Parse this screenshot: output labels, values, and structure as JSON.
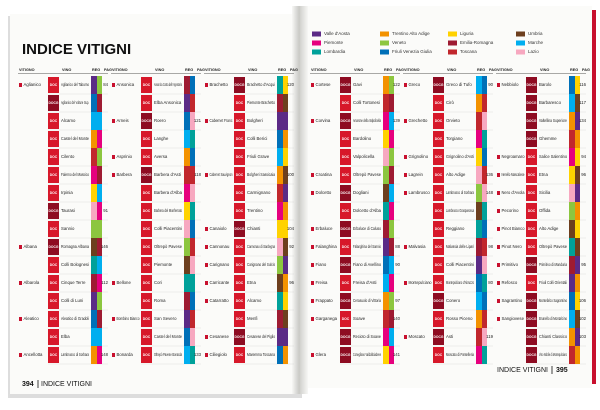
{
  "left_page": {
    "title": "INDICE VITIGNI",
    "headers": [
      "VITIGNO",
      "VINO",
      "REG",
      "PAG"
    ],
    "columns": [
      {
        "rows": [
          [
            "Aglianico",
            "DOC",
            "Aglianico del Taburno",
            84
          ],
          [
            null,
            "DOCG",
            "Aglianico del Vulture Sup.",
            null
          ],
          [
            null,
            "DOC",
            "Alcamo",
            null
          ],
          [
            null,
            "DOC",
            "Castel del Monte",
            null
          ],
          [
            null,
            "DOC",
            "Cilento",
            null
          ],
          [
            null,
            "DOC",
            "Falerno del Massico",
            null
          ],
          [
            null,
            "DOC",
            "Irpinia",
            null
          ],
          [
            null,
            "DOCG",
            "Taurasi",
            91
          ],
          [
            null,
            "DOC",
            "Sannio",
            null
          ],
          [
            "Albana",
            "DOCG",
            "Romagna Albana",
            146
          ],
          [
            null,
            "DOC",
            "Colli Bolognesi",
            null
          ],
          [
            "Albarola",
            "DOC",
            "Cinque Terre",
            112
          ],
          [
            null,
            "DOC",
            "Colli di Luni",
            null
          ],
          [
            "Aleatico",
            "DOC",
            "Aleatico di Gradoli",
            null
          ],
          [
            null,
            "DOC",
            "Elba",
            null
          ],
          [
            "Ancellotta",
            "DOC",
            "Lambrusco di Sorbara",
            148
          ]
        ]
      },
      {
        "rows": [
          [
            "Ansonica",
            "DOC",
            "Ansonica Costa dell'Argentario",
            null
          ],
          [
            null,
            "DOC",
            "Elba Ansonica",
            null
          ],
          [
            "Arneis",
            "DOCG",
            "Roero",
            121
          ],
          [
            null,
            "DOC",
            "Langhe",
            null
          ],
          [
            "Asprinio",
            "DOC",
            "Aversa",
            null
          ],
          [
            "Barbera",
            "DOCG",
            "Barbera d'Asti",
            118
          ],
          [
            null,
            "DOC",
            "Barbera d'Alba",
            null
          ],
          [
            null,
            "DOC",
            "Barbera del Monferrato",
            null
          ],
          [
            null,
            "DOC",
            "Colli Piacentini",
            null
          ],
          [
            null,
            "DOC",
            "Oltrepò Pavese",
            null
          ],
          [
            null,
            "DOC",
            "Piemonte",
            null
          ],
          [
            "Bellone",
            "DOC",
            "Cori",
            null
          ],
          [
            null,
            "DOC",
            "Roma",
            null
          ],
          [
            "Bombino Bianco",
            "DOC",
            "San Severo",
            null
          ],
          [
            null,
            "DOC",
            "Castel del Monte",
            null
          ],
          [
            "Bonarda",
            "DOC",
            "Oltrepò Pavese Bonarda",
            133
          ]
        ]
      },
      {
        "rows": [
          [
            "Brachetto",
            "DOCG",
            "Brachetto d'Acqui",
            120
          ],
          [
            null,
            "DOC",
            "Piemonte Brachetto",
            null
          ],
          [
            "Cabernet Franc",
            "DOC",
            "Bolgheri",
            null
          ],
          [
            null,
            "DOC",
            "Colli Berici",
            null
          ],
          [
            null,
            "DOC",
            "Friuli Grave",
            null
          ],
          [
            "Cabernet Sauvignon",
            "DOC",
            "Bolgheri Sassicaia",
            100
          ],
          [
            null,
            "DOC",
            "Carmignano",
            null
          ],
          [
            null,
            "DOC",
            "Trentino",
            null
          ],
          [
            "Canaiolo",
            "DOCG",
            "Chianti",
            104
          ],
          [
            "Cannonau",
            "DOC",
            "Cannonau di Sardegna",
            92
          ],
          [
            "Carignano",
            "DOC",
            "Carignano del Sulcis",
            null
          ],
          [
            "Carricante",
            "DOC",
            "Etna",
            96
          ],
          [
            "Catarratto",
            "DOC",
            "Alcamo",
            null
          ],
          [
            null,
            "DOC",
            "Menfi",
            null
          ],
          [
            "Cesanese",
            "DOCG",
            "Cesanese del Piglio",
            null
          ],
          [
            "Ciliegiolo",
            "DOC",
            "Maremma Toscana",
            null
          ]
        ]
      }
    ],
    "footer": {
      "page": "394",
      "label": "INDICE VITIGNI"
    }
  },
  "right_page": {
    "legend": [
      {
        "name": "Valle d'Aosta",
        "color": "#5b2a86"
      },
      {
        "name": "Piemonte",
        "color": "#e6007e"
      },
      {
        "name": "Lombardia",
        "color": "#00a19a"
      },
      {
        "name": "Trentino Alto Adige",
        "color": "#f39200"
      },
      {
        "name": "Veneto",
        "color": "#8cc63f"
      },
      {
        "name": "Friuli Venezia Giulia",
        "color": "#0070b8"
      },
      {
        "name": "Liguria",
        "color": "#ffd200"
      },
      {
        "name": "Emilia-Romagna",
        "color": "#9e1b32"
      },
      {
        "name": "Toscana",
        "color": "#c1272d"
      },
      {
        "name": "Umbria",
        "color": "#6d3f1e"
      },
      {
        "name": "Marche",
        "color": "#00aeef"
      },
      {
        "name": "Lazio",
        "color": "#f7a8c0"
      }
    ],
    "headers": [
      "VITIGNO",
      "VINO",
      "REG",
      "PAG"
    ],
    "columns": [
      {
        "rows": [
          [
            "Cortese",
            "DOCG",
            "Gavi",
            122
          ],
          [
            null,
            "DOC",
            "Colli Tortonesi",
            null
          ],
          [
            "Corvina",
            "DOCG",
            "Amarone della Valpolicella",
            139
          ],
          [
            null,
            "DOC",
            "Bardolino",
            null
          ],
          [
            null,
            "DOC",
            "Valpolicella",
            null
          ],
          [
            "Croatina",
            "DOC",
            "Oltrepò Pavese",
            null
          ],
          [
            "Dolcetto",
            "DOCG",
            "Dogliani",
            null
          ],
          [
            null,
            "DOC",
            "Dolcetto d'Alba",
            null
          ],
          [
            "Erbaluce",
            "DOCG",
            "Erbaluce di Caluso",
            null
          ],
          [
            "Falanghina",
            "DOC",
            "Falanghina del Sannio",
            88
          ],
          [
            "Fiano",
            "DOCG",
            "Fiano di Avellino",
            90
          ],
          [
            "Freisa",
            "DOC",
            "Freisa d'Asti",
            null
          ],
          [
            "Frappato",
            "DOCG",
            "Cerasuolo di Vittoria",
            97
          ],
          [
            "Garganega",
            "DOC",
            "Soave",
            140
          ],
          [
            null,
            "DOCG",
            "Recioto di Soave",
            null
          ],
          [
            "Glera",
            "DOCG",
            "Conegliano Valdobbiadene",
            141
          ]
        ]
      },
      {
        "rows": [
          [
            "Greco",
            "DOCG",
            "Greco di Tufo",
            90
          ],
          [
            null,
            "DOC",
            "Cirò",
            null
          ],
          [
            "Grechetto",
            "DOC",
            "Orvieto",
            null
          ],
          [
            null,
            "DOC",
            "Torgiano",
            null
          ],
          [
            "Grignolino",
            "DOC",
            "Grignolino d'Asti",
            null
          ],
          [
            "Lagrein",
            "DOC",
            "Alto Adige",
            136
          ],
          [
            "Lambrusco",
            "DOC",
            "Lambrusco di Sorbara",
            148
          ],
          [
            null,
            "DOC",
            "Lambrusco Grasparossa",
            null
          ],
          [
            null,
            "DOC",
            "Reggiano",
            null
          ],
          [
            "Malvasia",
            "DOC",
            "Malvasia delle Lipari",
            98
          ],
          [
            null,
            "DOC",
            "Colli Piacentini",
            null
          ],
          [
            "Montepulciano",
            "DOC",
            "Montepulciano d'Abruzzo",
            80
          ],
          [
            null,
            "DOCG",
            "Conero",
            null
          ],
          [
            null,
            "DOC",
            "Rosso Piceno",
            null
          ],
          [
            "Moscato",
            "DOCG",
            "Asti",
            119
          ],
          [
            null,
            "DOC",
            "Moscato di Pantelleria",
            null
          ]
        ]
      },
      {
        "rows": [
          [
            "Nebbiolo",
            "DOCG",
            "Barolo",
            116
          ],
          [
            null,
            "DOCG",
            "Barbaresco",
            117
          ],
          [
            null,
            "DOCG",
            "Valtellina Superiore",
            134
          ],
          [
            null,
            "DOCG",
            "Ghemme",
            null
          ],
          [
            "Negroamaro",
            "DOC",
            "Salice Salentino",
            94
          ],
          [
            "Nerello Mascalese",
            "DOC",
            "Etna",
            96
          ],
          [
            "Nero d'Avola",
            "DOC",
            "Sicilia",
            null
          ],
          [
            "Pecorino",
            "DOC",
            "Offida",
            null
          ],
          [
            "Pinot Bianco",
            "DOC",
            "Alto Adige",
            null
          ],
          [
            "Pinot Nero",
            "DOC",
            "Oltrepò Pavese",
            null
          ],
          [
            "Primitivo",
            "DOCG",
            "Primitivo di Manduria",
            95
          ],
          [
            "Refosco",
            "DOC",
            "Friuli Colli Orientali",
            null
          ],
          [
            "Sagrantino",
            "DOCG",
            "Montefalco Sagrantino",
            106
          ],
          [
            "Sangiovese",
            "DOCG",
            "Brunello di Montalcino",
            102
          ],
          [
            null,
            "DOCG",
            "Chianti Classico",
            103
          ],
          [
            null,
            "DOCG",
            "Vino Nobile di Montepulciano",
            null
          ]
        ]
      }
    ],
    "footer": {
      "page": "395",
      "label": "INDICE VITIGNI"
    }
  }
}
